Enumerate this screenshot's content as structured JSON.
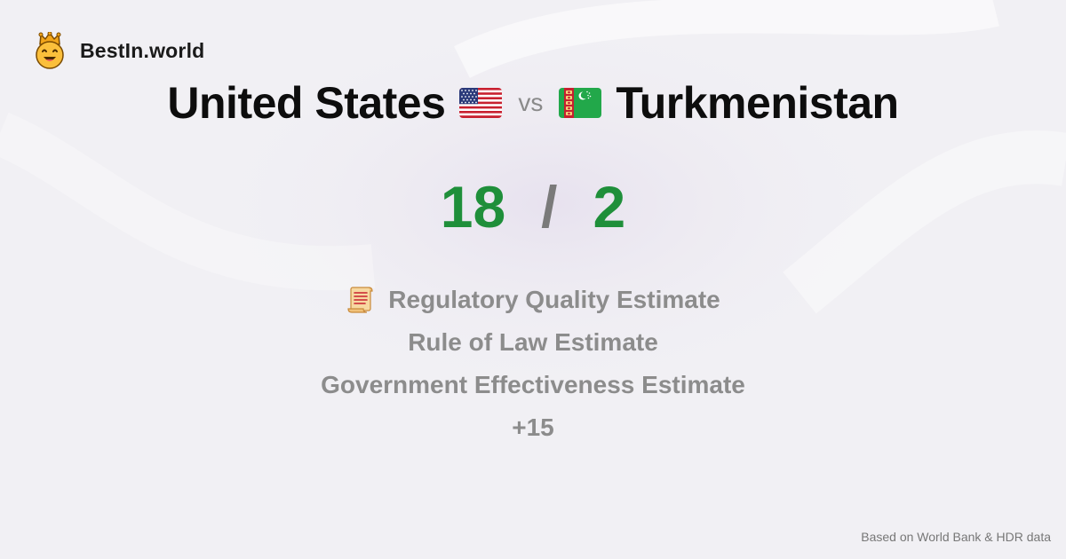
{
  "brand": {
    "name": "BestIn.world",
    "logo_icon": "smiling-crown-face-icon"
  },
  "comparison": {
    "left_country": "United States",
    "left_flag": "us-flag-icon",
    "vs_label": "vs",
    "right_country": "Turkmenistan",
    "right_flag": "turkmenistan-flag-icon"
  },
  "score": {
    "left": "18",
    "separator": "/",
    "right": "2",
    "color": "#1f8f3a"
  },
  "criteria": {
    "icon": "scroll-icon",
    "items": [
      "Regulatory Quality Estimate",
      "Rule of Law Estimate",
      "Government Effectiveness Estimate"
    ],
    "more": "+15"
  },
  "footer": {
    "source": "Based on World Bank & HDR data"
  }
}
